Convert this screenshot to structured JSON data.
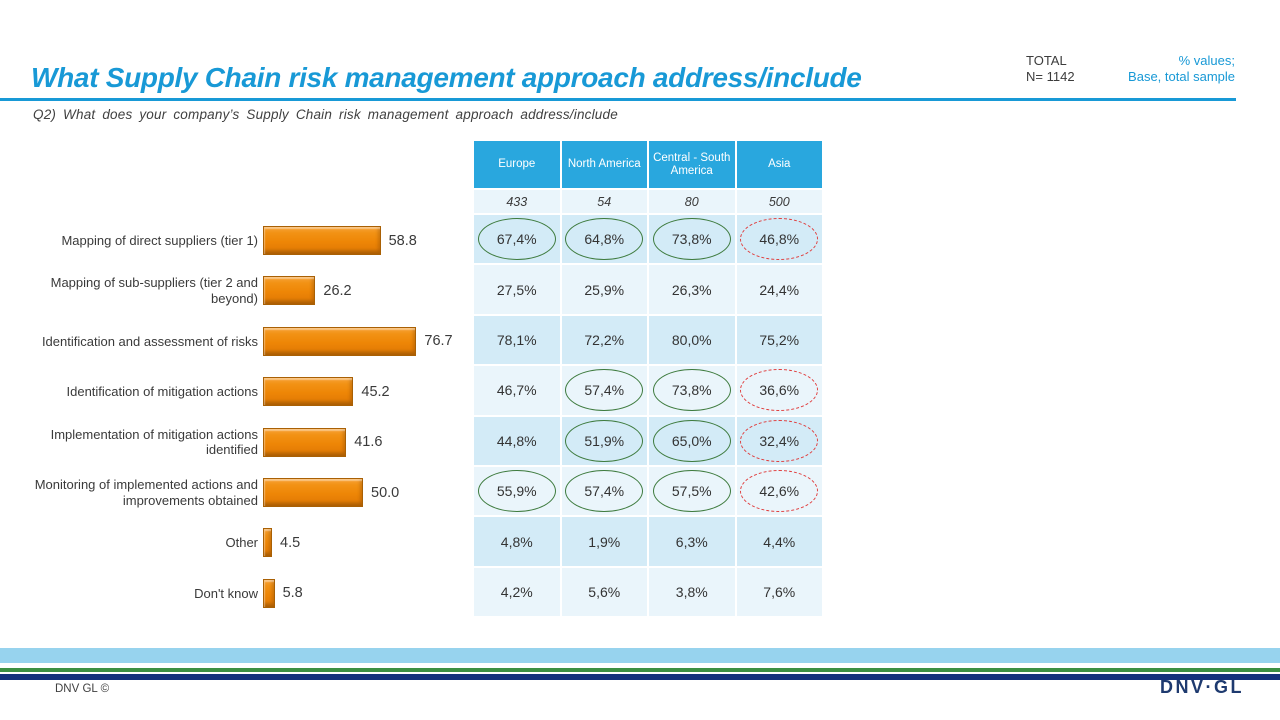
{
  "slide": {
    "title": "What Supply Chain risk management approach address/include",
    "subtitle": "Q2) What does your company’s Supply Chain risk management approach address/include",
    "total_label": "TOTAL",
    "total_n": "N= 1142",
    "values_note_line1": "% values;",
    "values_note_line2": "Base, total sample"
  },
  "chart_data": {
    "type": "bar",
    "orientation": "horizontal",
    "title": "What Supply Chain risk management approach address/include",
    "categories": [
      "Mapping of direct suppliers (tier 1)",
      "Mapping of sub-suppliers (tier 2 and beyond)",
      "Identification and assessment of risks",
      "Identification of mitigation actions",
      "Implementation of mitigation actions identified",
      "Monitoring of implemented actions and improvements obtained",
      "Other",
      "Don't know"
    ],
    "values": [
      58.8,
      26.2,
      76.7,
      45.2,
      41.6,
      50.0,
      4.5,
      5.8
    ],
    "value_labels": [
      "58.8",
      "26.2",
      "76.7",
      "45.2",
      "41.6",
      "50.0",
      "4.5",
      "5.8"
    ],
    "xlim": [
      0,
      100
    ],
    "bar_color": "#EE8606",
    "legend_position": "none",
    "grid": false,
    "regions_table": {
      "columns": [
        "Europe",
        "North America",
        "Central - South America",
        "Asia"
      ],
      "base_values": [
        "433",
        "54",
        "80",
        "500"
      ],
      "rows": [
        {
          "cells": [
            "67,4%",
            "64,8%",
            "73,8%",
            "46,8%"
          ],
          "marks": [
            "green",
            "green",
            "green",
            "red"
          ]
        },
        {
          "cells": [
            "27,5%",
            "25,9%",
            "26,3%",
            "24,4%"
          ],
          "marks": [
            null,
            null,
            null,
            null
          ]
        },
        {
          "cells": [
            "78,1%",
            "72,2%",
            "80,0%",
            "75,2%"
          ],
          "marks": [
            null,
            null,
            null,
            null
          ]
        },
        {
          "cells": [
            "46,7%",
            "57,4%",
            "73,8%",
            "36,6%"
          ],
          "marks": [
            null,
            "green",
            "green",
            "red"
          ]
        },
        {
          "cells": [
            "44,8%",
            "51,9%",
            "65,0%",
            "32,4%"
          ],
          "marks": [
            null,
            "green",
            "green",
            "red"
          ]
        },
        {
          "cells": [
            "55,9%",
            "57,4%",
            "57,5%",
            "42,6%"
          ],
          "marks": [
            "green",
            "green",
            "green",
            "red"
          ]
        },
        {
          "cells": [
            "4,8%",
            "1,9%",
            "6,3%",
            "4,4%"
          ],
          "marks": [
            null,
            null,
            null,
            null
          ]
        },
        {
          "cells": [
            "4,2%",
            "5,6%",
            "3,8%",
            "7,6%"
          ],
          "marks": [
            null,
            null,
            null,
            null
          ]
        }
      ]
    }
  },
  "footer": {
    "copyright": "DNV GL ©",
    "logo_text": "DNV·GL"
  },
  "colors": {
    "accent_blue": "#1899D6",
    "table_header_blue": "#29A7DE",
    "row_dark": "#D3EBF7",
    "row_light": "#EAF5FB",
    "bar_orange": "#EE8606",
    "mark_green": "#3E7B3E",
    "mark_red": "#E03E3E",
    "band_skyblue": "#97D3EE",
    "band_green": "#3C9043",
    "band_navy": "#14317C"
  }
}
